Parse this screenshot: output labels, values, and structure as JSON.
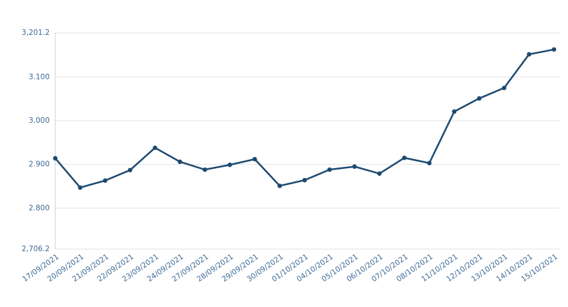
{
  "chart_data": {
    "type": "line",
    "categories": [
      "17/09/2021",
      "20/09/2021",
      "21/09/2021",
      "22/09/2021",
      "23/09/2021",
      "24/09/2021",
      "27/09/2021",
      "28/09/2021",
      "29/09/2021",
      "30/09/2021",
      "01/10/2021",
      "04/10/2021",
      "05/10/2021",
      "06/10/2021",
      "07/10/2021",
      "08/10/2021",
      "11/10/2021",
      "12/10/2021",
      "13/10/2021",
      "14/10/2021",
      "15/10/2021"
    ],
    "series": [
      {
        "color": "#1d4a70",
        "values": [
          2914,
          2847,
          2863,
          2887,
          2938,
          2906,
          2888,
          2899,
          2912,
          2851,
          2864,
          2888,
          2895,
          2879,
          2915,
          2903,
          3021,
          3051,
          3075,
          3152,
          3163
        ]
      }
    ],
    "ylim": [
      2706.2,
      3201.2
    ],
    "yticks": [
      {
        "value": 2706.2,
        "label": "2,706.2"
      },
      {
        "value": 2800,
        "label": "2.800"
      },
      {
        "value": 2900,
        "label": "2.900"
      },
      {
        "value": 3000,
        "label": "3.000"
      },
      {
        "value": 3100,
        "label": "3.100"
      },
      {
        "value": 3201.2,
        "label": "3,201.2"
      }
    ],
    "grid": true
  }
}
